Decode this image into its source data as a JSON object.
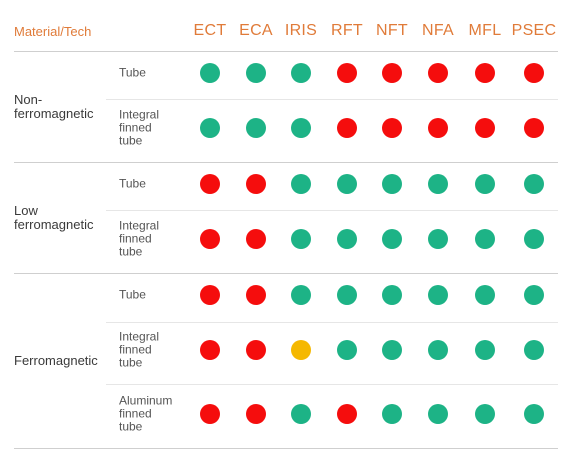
{
  "header": {
    "material_label": "Material/Tech",
    "technologies": [
      "ECT",
      "ECA",
      "IRIS",
      "RFT",
      "NFT",
      "NFA",
      "MFL",
      "PSEC"
    ]
  },
  "legend_colors": {
    "G": "#1db386",
    "R": "#f50d0d",
    "Y": "#f5b800"
  },
  "groups": [
    {
      "label": "Non-\nferromagnetic",
      "rows": [
        {
          "label": "Tube",
          "status": [
            "G",
            "G",
            "G",
            "R",
            "R",
            "R",
            "R",
            "R"
          ]
        },
        {
          "label": "Integral\nfinned\ntube",
          "status": [
            "G",
            "G",
            "G",
            "R",
            "R",
            "R",
            "R",
            "R"
          ]
        }
      ]
    },
    {
      "label": "Low\nferromagnetic",
      "rows": [
        {
          "label": "Tube",
          "status": [
            "R",
            "R",
            "G",
            "G",
            "G",
            "G",
            "G",
            "G"
          ]
        },
        {
          "label": "Integral\nfinned\ntube",
          "status": [
            "R",
            "R",
            "G",
            "G",
            "G",
            "G",
            "G",
            "G"
          ]
        }
      ]
    },
    {
      "label": "Ferromagnetic",
      "rows": [
        {
          "label": "Tube",
          "status": [
            "R",
            "R",
            "G",
            "G",
            "G",
            "G",
            "G",
            "G"
          ]
        },
        {
          "label": "Integral\nfinned\ntube",
          "status": [
            "R",
            "R",
            "Y",
            "G",
            "G",
            "G",
            "G",
            "G"
          ]
        },
        {
          "label": "Aluminum\nfinned\ntube",
          "status": [
            "R",
            "R",
            "G",
            "R",
            "G",
            "G",
            "G",
            "G"
          ]
        }
      ]
    }
  ]
}
